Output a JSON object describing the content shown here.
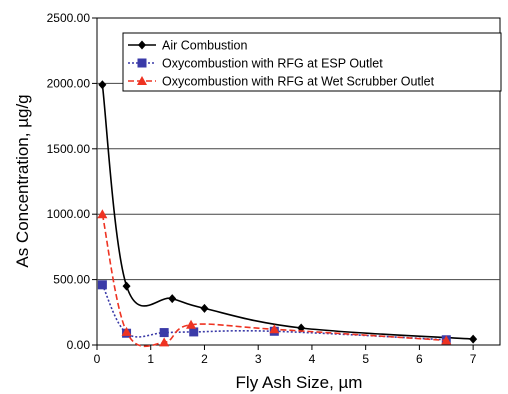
{
  "chart_data": {
    "type": "line",
    "xlabel": "Fly Ash Size, µm",
    "ylabel": "As Concentration, µg/g",
    "xlim": [
      0,
      7.5
    ],
    "ylim": [
      0,
      2500
    ],
    "xticks": [
      0,
      1,
      2,
      3,
      4,
      5,
      6,
      7
    ],
    "xtick_labels": [
      "0",
      "1",
      "2",
      "3",
      "4",
      "5",
      "6",
      "7"
    ],
    "yticks": [
      0,
      500,
      1000,
      1500,
      2000,
      2500
    ],
    "ytick_labels": [
      "0.00",
      "500.00",
      "1000.00",
      "1500.00",
      "2000.00",
      "2500.00"
    ],
    "grid": "horizontal",
    "legend_position": "top-right",
    "series": [
      {
        "name": "Air Combustion",
        "color": "#000000",
        "marker": "diamond",
        "line": "solid",
        "x": [
          0.1,
          0.55,
          1.4,
          2.0,
          3.8,
          7.0
        ],
        "y": [
          1990,
          450,
          355,
          280,
          130,
          45
        ]
      },
      {
        "name": "Oxycombustion with RFG at ESP Outlet",
        "color": "#3a3aa8",
        "marker": "square",
        "line": "dotted",
        "x": [
          0.1,
          0.55,
          1.25,
          1.8,
          3.3,
          6.5
        ],
        "y": [
          460,
          90,
          95,
          100,
          105,
          40
        ]
      },
      {
        "name": "Oxycombustion with RFG at Wet Scrubber Outlet",
        "color": "#ee3322",
        "marker": "triangle",
        "line": "dashed",
        "x": [
          0.1,
          0.55,
          1.25,
          1.75,
          3.3,
          6.5
        ],
        "y": [
          1000,
          100,
          20,
          155,
          120,
          35
        ]
      }
    ]
  }
}
